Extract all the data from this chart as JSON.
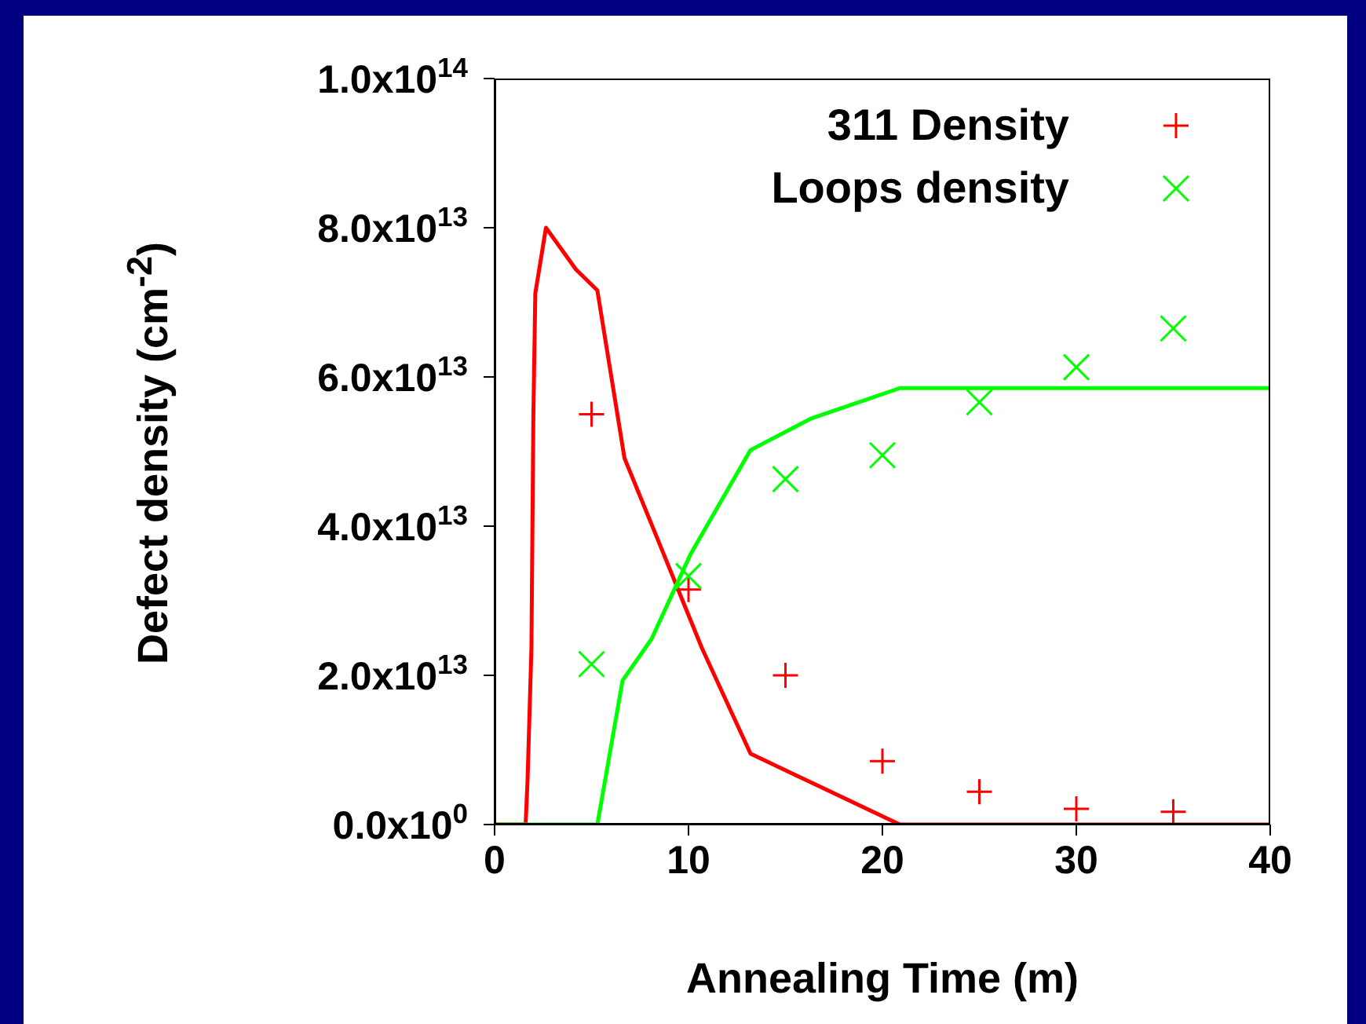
{
  "chart_data": {
    "type": "line",
    "xlabel": "Annealing Time (m)",
    "ylabel": "Defect density (cm$^{-2}$)",
    "xlim": [
      0,
      40
    ],
    "xticks": [
      0,
      10,
      20,
      30,
      40
    ],
    "ylim": [
      0,
      100000000000000.0
    ],
    "yticks": [
      {
        "value": 0,
        "label": "0.0x10$^{0}$"
      },
      {
        "value": 20000000000000.0,
        "label": "2.0x10$^{13}$"
      },
      {
        "value": 40000000000000.0,
        "label": "4.0x10$^{13}$"
      },
      {
        "value": 60000000000000.0,
        "label": "6.0x10$^{13}$"
      },
      {
        "value": 80000000000000.0,
        "label": "8.0x10$^{13}$"
      },
      {
        "value": 100000000000000.0,
        "label": "1.0x10$^{14}$"
      }
    ],
    "grid": false,
    "legend": "top right",
    "series": [
      {
        "color": "#ff0000",
        "x": [
          0,
          1.6,
          1.7,
          1.9,
          2.0,
          2.1,
          2.65,
          4.2,
          5.3,
          6.7,
          8.4,
          10.7,
          13.2,
          20.9,
          40
        ],
        "values": [
          0,
          0,
          5900000000000.0,
          23600000000000.0,
          54700000000000.0,
          71200000000000.0,
          80000000000000.0,
          74400000000000.0,
          71600000000000.0,
          49100000000000.0,
          38300000000000.0,
          23600000000000.0,
          9500000000000.0,
          0,
          0
        ]
      },
      {
        "color": "#00ff00",
        "x": [
          0,
          5.3,
          6.6,
          8.1,
          10.1,
          13.2,
          16.3,
          20.9,
          40
        ],
        "values": [
          0,
          0,
          19300000000000.0,
          24900000000000.0,
          36200000000000.0,
          50200000000000.0,
          54400000000000.0,
          58500000000000.0,
          58500000000000.0
        ]
      },
      {
        "type": "scatter",
        "name": "311 Density",
        "color": "#ff0000",
        "marker": "cross",
        "x": [
          5,
          10,
          15,
          20,
          25,
          30,
          35
        ],
        "values": [
          55000000000000.0,
          31500000000000.0,
          20000000000000.0,
          8500000000000.0,
          4400000000000.0,
          2100000000000.0,
          1700000000000.0
        ]
      },
      {
        "type": "scatter",
        "name": "Loops density",
        "color": "#00ff00",
        "marker": "x",
        "x": [
          5,
          10,
          15,
          20,
          25,
          30,
          35
        ],
        "values": [
          21500000000000.0,
          33300000000000.0,
          46300000000000.0,
          49500000000000.0,
          56600000000000.0,
          61300000000000.0,
          66500000000000.0
        ]
      }
    ]
  }
}
